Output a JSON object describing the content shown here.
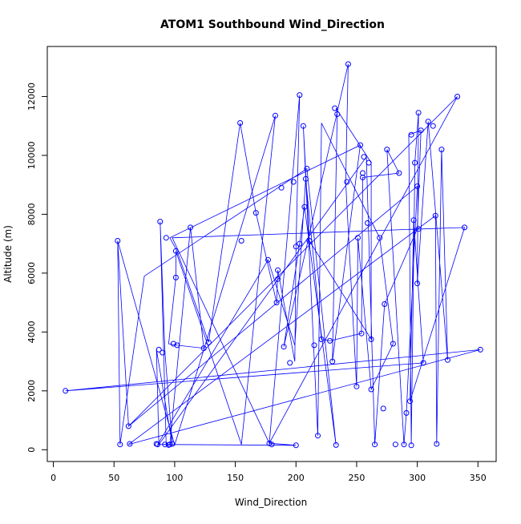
{
  "chart_data": {
    "type": "scatter",
    "title": "ATOM1 Southbound Wind_Direction",
    "xlabel": "Wind_Direction",
    "ylabel": "Altitude (m)",
    "xlim": [
      -5,
      365
    ],
    "ylim": [
      -400,
      13700
    ],
    "xticks": [
      0,
      50,
      100,
      150,
      200,
      250,
      300,
      350
    ],
    "yticks": [
      0,
      2000,
      4000,
      6000,
      8000,
      10000,
      12000
    ],
    "grid": false,
    "legend": "none",
    "color": "#0000ff",
    "connected": true,
    "series": [
      {
        "points": [
          [
            53,
            7100
          ],
          [
            55,
            180
          ],
          [
            62,
            800
          ],
          [
            63,
            200
          ],
          [
            85,
            200
          ],
          [
            86,
            180
          ],
          [
            87,
            3400
          ],
          [
            88,
            7750
          ],
          [
            90,
            3300
          ],
          [
            92,
            180
          ],
          [
            93,
            7200
          ],
          [
            95,
            160
          ],
          [
            96,
            180
          ],
          [
            98,
            200
          ],
          [
            99,
            3600
          ],
          [
            101,
            6750
          ],
          [
            101,
            5850
          ],
          [
            102,
            3550
          ],
          [
            113,
            7550
          ],
          [
            124,
            3450
          ],
          [
            128,
            3650
          ],
          [
            154,
            11100
          ],
          [
            155,
            7100
          ],
          [
            167,
            8050
          ],
          [
            177,
            6450
          ],
          [
            178,
            220
          ],
          [
            180,
            180
          ],
          [
            183,
            11350
          ],
          [
            184,
            5000
          ],
          [
            185,
            5800
          ],
          [
            185,
            6100
          ],
          [
            188,
            8900
          ],
          [
            190,
            3500
          ],
          [
            195,
            2950
          ],
          [
            198,
            9100
          ],
          [
            200,
            6900
          ],
          [
            200,
            150
          ],
          [
            203,
            12050
          ],
          [
            203,
            7000
          ],
          [
            206,
            11000
          ],
          [
            207,
            8250
          ],
          [
            208,
            9200
          ],
          [
            209,
            9550
          ],
          [
            211,
            7100
          ],
          [
            215,
            3550
          ],
          [
            218,
            480
          ],
          [
            221,
            3750
          ],
          [
            228,
            3700
          ],
          [
            230,
            3000
          ],
          [
            232,
            11600
          ],
          [
            233,
            160
          ],
          [
            234,
            11400
          ],
          [
            242,
            9100
          ],
          [
            243,
            13100
          ],
          [
            250,
            2150
          ],
          [
            251,
            7200
          ],
          [
            253,
            10350
          ],
          [
            254,
            3950
          ],
          [
            255,
            9250
          ],
          [
            255,
            9400
          ],
          [
            256,
            9950
          ],
          [
            259,
            7700
          ],
          [
            260,
            9750
          ],
          [
            262,
            2050
          ],
          [
            262,
            3750
          ],
          [
            265,
            180
          ],
          [
            269,
            7200
          ],
          [
            272,
            1400
          ],
          [
            273,
            4950
          ],
          [
            275,
            10200
          ],
          [
            280,
            3600
          ],
          [
            282,
            180
          ],
          [
            285,
            9400
          ],
          [
            289,
            180
          ],
          [
            291,
            1250
          ],
          [
            294,
            1650
          ],
          [
            295,
            10700
          ],
          [
            295,
            150
          ],
          [
            297,
            7800
          ],
          [
            298,
            9750
          ],
          [
            300,
            5650
          ],
          [
            300,
            8950
          ],
          [
            301,
            7500
          ],
          [
            301,
            11450
          ],
          [
            303,
            10850
          ],
          [
            305,
            2950
          ],
          [
            309,
            11150
          ],
          [
            313,
            11000
          ],
          [
            315,
            7950
          ],
          [
            316,
            200
          ],
          [
            320,
            10200
          ],
          [
            325,
            3050
          ],
          [
            333,
            12000
          ],
          [
            339,
            7550
          ],
          [
            352,
            3400
          ],
          [
            10,
            2000
          ]
        ],
        "path": [
          [
            53,
            7100
          ],
          [
            62,
            800
          ],
          [
            333,
            12000
          ],
          [
            178,
            220
          ],
          [
            98,
            7200
          ],
          [
            339,
            7550
          ],
          [
            294,
            1650
          ],
          [
            297,
            7800
          ],
          [
            305,
            2950
          ],
          [
            10,
            2000
          ],
          [
            352,
            3400
          ],
          [
            62,
            180
          ],
          [
            315,
            7950
          ],
          [
            316,
            200
          ],
          [
            320,
            10200
          ],
          [
            325,
            3050
          ],
          [
            309,
            11150
          ],
          [
            300,
            5650
          ],
          [
            301,
            11450
          ],
          [
            298,
            9750
          ],
          [
            295,
            180
          ],
          [
            293,
            10700
          ],
          [
            303,
            10850
          ],
          [
            300,
            7500
          ],
          [
            273,
            4950
          ],
          [
            265,
            180
          ],
          [
            258,
            9950
          ],
          [
            87,
            180
          ],
          [
            85,
            3400
          ],
          [
            98,
            180
          ],
          [
            92,
            3300
          ],
          [
            88,
            7750
          ],
          [
            93,
            180
          ],
          [
            90,
            180
          ],
          [
            96,
            160
          ],
          [
            113,
            7550
          ],
          [
            124,
            3450
          ],
          [
            102,
            3550
          ],
          [
            95,
            3600
          ],
          [
            101,
            5850
          ],
          [
            101,
            6750
          ],
          [
            155,
            180
          ],
          [
            183,
            11350
          ],
          [
            100,
            160
          ],
          [
            53,
            7100
          ],
          [
            55,
            180
          ],
          [
            75,
            5900
          ],
          [
            209,
            9550
          ],
          [
            233,
            160
          ],
          [
            207,
            8250
          ],
          [
            203,
            7000
          ],
          [
            190,
            3500
          ],
          [
            243,
            13100
          ],
          [
            241,
            9100
          ],
          [
            250,
            2150
          ],
          [
            251,
            7200
          ],
          [
            262,
            2050
          ],
          [
            280,
            3600
          ],
          [
            269,
            7200
          ],
          [
            221,
            11100
          ],
          [
            218,
            480
          ],
          [
            206,
            11000
          ],
          [
            211,
            7100
          ],
          [
            262,
            3750
          ],
          [
            262,
            9750
          ],
          [
            233,
            11600
          ],
          [
            234,
            11400
          ],
          [
            230,
            3000
          ],
          [
            253,
            10350
          ],
          [
            96,
            7200
          ],
          [
            102,
            6750
          ],
          [
            128,
            3650
          ],
          [
            154,
            11100
          ],
          [
            167,
            8050
          ],
          [
            184,
            5000
          ],
          [
            185,
            6100
          ],
          [
            199,
            3000
          ],
          [
            200,
            6900
          ],
          [
            203,
            12050
          ],
          [
            178,
            220
          ],
          [
            200,
            150
          ],
          [
            86,
            180
          ],
          [
            177,
            6450
          ],
          [
            199,
            3550
          ],
          [
            208,
            9200
          ],
          [
            221,
            3750
          ],
          [
            228,
            3700
          ],
          [
            254,
            3950
          ],
          [
            255,
            9250
          ],
          [
            285,
            9400
          ],
          [
            275,
            10200
          ],
          [
            289,
            180
          ],
          [
            291,
            1250
          ],
          [
            300,
            8950
          ],
          [
            62,
            800
          ]
        ]
      }
    ]
  }
}
